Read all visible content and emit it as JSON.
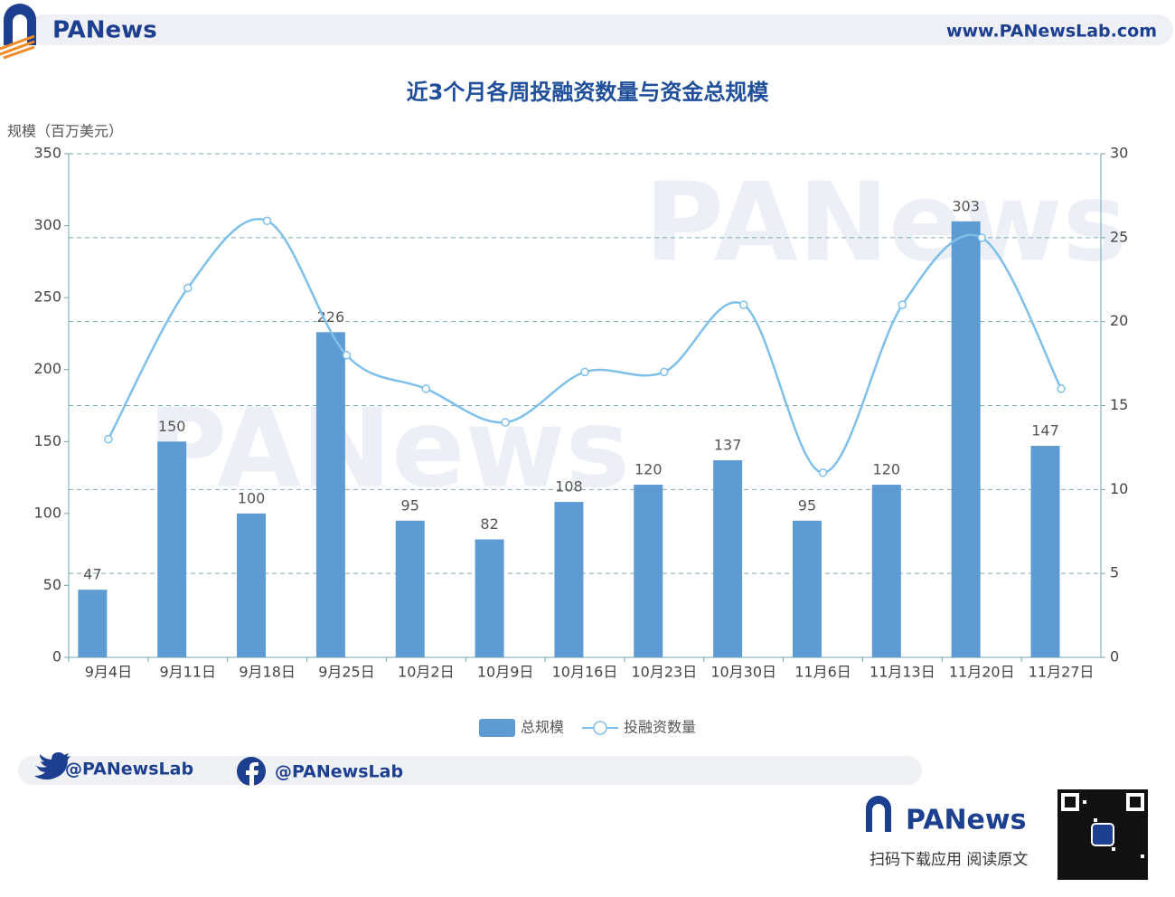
{
  "header": {
    "brand": "PANews",
    "url": "www.PANewsLab.com"
  },
  "chart_data": {
    "type": "bar",
    "title": "近3个月各周投融资数量与资金总规模",
    "y_axis_label": "规模（百万美元）",
    "categories": [
      "9月4日",
      "9月11日",
      "9月18日",
      "9月25日",
      "10月2日",
      "10月9日",
      "10月16日",
      "10月23日",
      "10月30日",
      "11月6日",
      "11月13日",
      "11月20日",
      "11月27日"
    ],
    "series": [
      {
        "name": "总规模",
        "type": "bar",
        "color": "#5f9bd3",
        "values": [
          47,
          150,
          100,
          226,
          95,
          82,
          108,
          120,
          137,
          95,
          120,
          303,
          147
        ]
      },
      {
        "name": "投融资数量",
        "type": "line",
        "axis": "y2",
        "color": "#7ec0ea",
        "values": [
          13,
          22,
          26,
          18,
          16,
          14,
          17,
          17,
          21,
          11,
          21,
          25,
          16
        ]
      }
    ],
    "ylim": [
      0,
      350
    ],
    "yticks": [
      0,
      50,
      100,
      150,
      200,
      250,
      300,
      350
    ],
    "y2lim": [
      0,
      30
    ],
    "y2ticks": [
      0,
      5,
      10,
      15,
      20,
      25,
      30
    ],
    "grid": "y2",
    "watermark": "PANews"
  },
  "footer": {
    "twitter": "@PANewsLab",
    "facebook": "@PANewsLab",
    "brand": "PANews",
    "cta": "扫码下载应用 阅读原文"
  }
}
